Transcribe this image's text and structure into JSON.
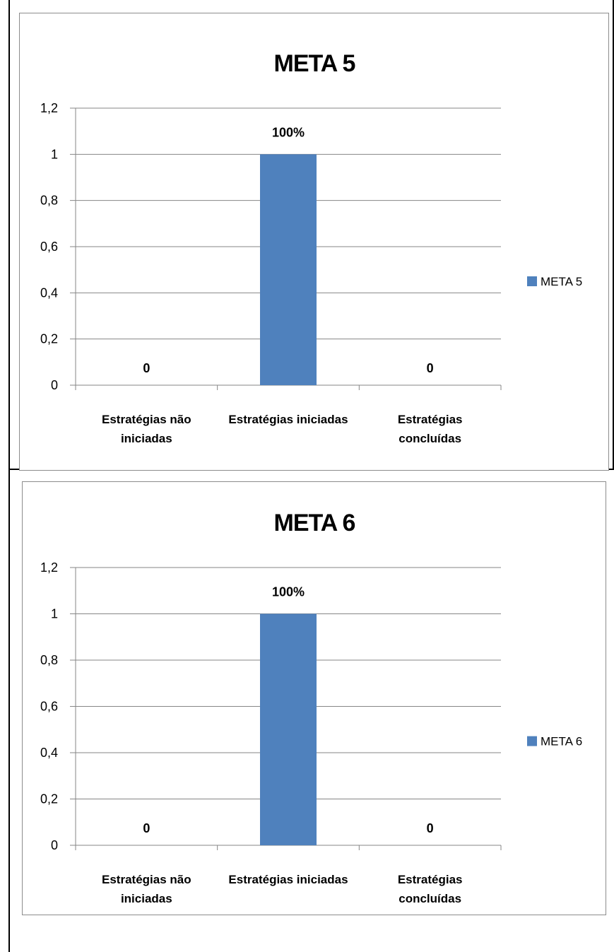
{
  "colors": {
    "bar": "#4f81bd",
    "grid": "#868686",
    "axis": "#868686"
  },
  "chart_data": [
    {
      "type": "bar",
      "title": "META 5",
      "categories": [
        [
          "Estratégias não",
          "iniciadas"
        ],
        [
          "Estratégias iniciadas"
        ],
        [
          "Estratégias",
          "concluídas"
        ]
      ],
      "series": [
        {
          "name": "META 5",
          "values": [
            0,
            1,
            0
          ]
        }
      ],
      "data_labels": [
        "0",
        "100%",
        "0"
      ],
      "ylim": [
        0,
        1.2
      ],
      "yticks": [
        "0",
        "0,2",
        "0,4",
        "0,6",
        "0,8",
        "1",
        "1,2"
      ],
      "grid": true,
      "legend": "right"
    },
    {
      "type": "bar",
      "title": "META 6",
      "categories": [
        [
          "Estratégias não",
          "iniciadas"
        ],
        [
          "Estratégias iniciadas"
        ],
        [
          "Estratégias",
          "concluídas"
        ]
      ],
      "series": [
        {
          "name": "META 6",
          "values": [
            0,
            1,
            0
          ]
        }
      ],
      "data_labels": [
        "0",
        "100%",
        "0"
      ],
      "ylim": [
        0,
        1.2
      ],
      "yticks": [
        "0",
        "0,2",
        "0,4",
        "0,6",
        "0,8",
        "1",
        "1,2"
      ],
      "grid": true,
      "legend": "right"
    }
  ]
}
